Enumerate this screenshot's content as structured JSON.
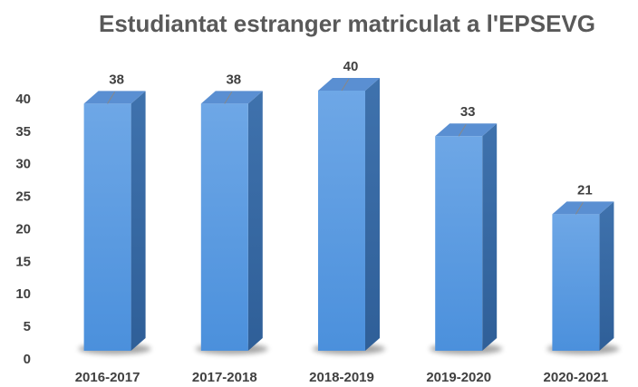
{
  "chart_data": {
    "type": "bar",
    "title": "Estudiantat estranger matriculat  a l'EPSEVG",
    "categories": [
      "2016-2017",
      "2017-2018",
      "2018-2019",
      "2019-2020",
      "2020-2021"
    ],
    "values": [
      38,
      38,
      40,
      33,
      21
    ],
    "color": "#5b9be0",
    "ylim": [
      0,
      40
    ],
    "yticks": [
      0,
      5,
      10,
      15,
      20,
      25,
      30,
      35,
      40
    ],
    "grid": false
  }
}
